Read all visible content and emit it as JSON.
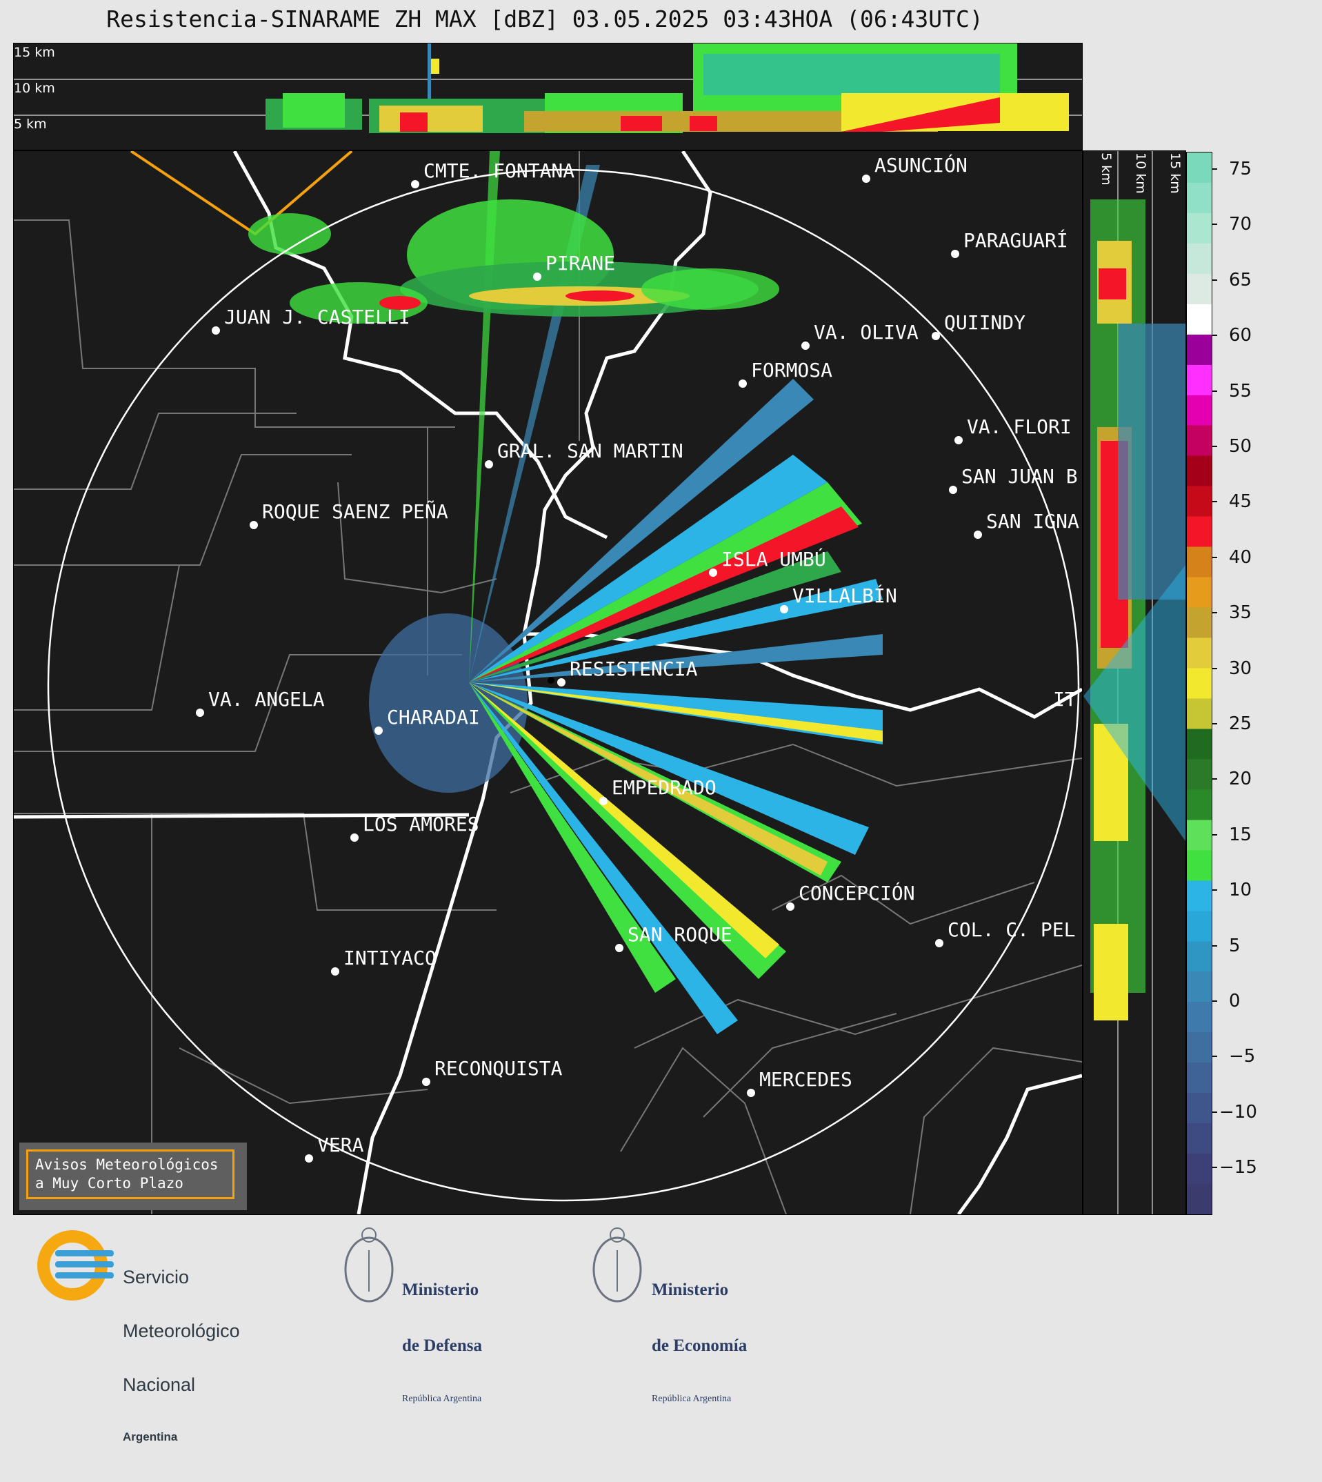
{
  "title": "Resistencia-SINARAME ZH MAX [dBZ] 03.05.2025 03:43HOA (06:43UTC)",
  "top_panel": {
    "altitudes": [
      "15 km",
      "10 km",
      "5 km"
    ]
  },
  "side_panel": {
    "altitudes": [
      "5 km",
      "10 km",
      "15 km"
    ]
  },
  "colorbar": {
    "ticks": [
      "75",
      "70",
      "65",
      "60",
      "55",
      "50",
      "45",
      "40",
      "35",
      "30",
      "25",
      "20",
      "15",
      "10",
      "5",
      "0",
      "−5",
      "−10",
      "−15"
    ],
    "colors": [
      "#3c3b6e",
      "#3d4077",
      "#3e4a82",
      "#3f568d",
      "#3f6297",
      "#3f6ea1",
      "#3e7aab",
      "#3a88b5",
      "#2f96c3",
      "#29a7d8",
      "#2cb4e6",
      "#3fe03f",
      "#5ee05a",
      "#2a8a2a",
      "#2a7a2a",
      "#1f6b1f",
      "#c6c532",
      "#f2e92e",
      "#e3cc3c",
      "#c4a42f",
      "#e69b1c",
      "#d6821a",
      "#f41528",
      "#c60a1a",
      "#a4001a",
      "#c40060",
      "#e400b0",
      "#ff30ff",
      "#9b009b",
      "#ffffff",
      "#dde9e3",
      "#c5e8db",
      "#abe6d1",
      "#8fe0c6",
      "#7ad8bb"
    ]
  },
  "cities": [
    {
      "name": "CMTE. FONTANA"
    },
    {
      "name": "ASUNCIÓN"
    },
    {
      "name": "PARAGUARÍ"
    },
    {
      "name": "PIRANE"
    },
    {
      "name": "JUAN J. CASTELLI"
    },
    {
      "name": "VA. OLIVA"
    },
    {
      "name": "QUIINDY"
    },
    {
      "name": "FORMOSA"
    },
    {
      "name": "VA. FLORI"
    },
    {
      "name": "GRAL. SAN MARTIN"
    },
    {
      "name": "SAN JUAN B"
    },
    {
      "name": "ROQUE SAENZ PEÑA"
    },
    {
      "name": "SAN IGNA"
    },
    {
      "name": "ISLA UMBÚ"
    },
    {
      "name": "VILLALBÍN"
    },
    {
      "name": "RESISTENCIA"
    },
    {
      "name": "VA. ANGELA"
    },
    {
      "name": "CHARADAI"
    },
    {
      "name": "IT"
    },
    {
      "name": "EMPEDRADO"
    },
    {
      "name": "LOS AMORES"
    },
    {
      "name": "CONCEPCIÓN"
    },
    {
      "name": "SAN ROQUE"
    },
    {
      "name": "COL. C. PEL"
    },
    {
      "name": "INTIYACO"
    },
    {
      "name": "RECONQUISTA"
    },
    {
      "name": "MERCEDES"
    },
    {
      "name": "VERA"
    }
  ],
  "warning_box": {
    "line1": "Avisos Meteorológicos",
    "line2": "a Muy Corto Plazo"
  },
  "logos": {
    "smn": {
      "line1": "Servicio",
      "line2": "Meteorológico",
      "line3": "Nacional",
      "line4": "Argentina"
    },
    "defensa": {
      "line1": "Ministerio",
      "line2": "de Defensa",
      "line3": "República Argentina"
    },
    "economia": {
      "line1": "Ministerio",
      "line2": "de Economía",
      "line3": "República Argentina"
    }
  }
}
